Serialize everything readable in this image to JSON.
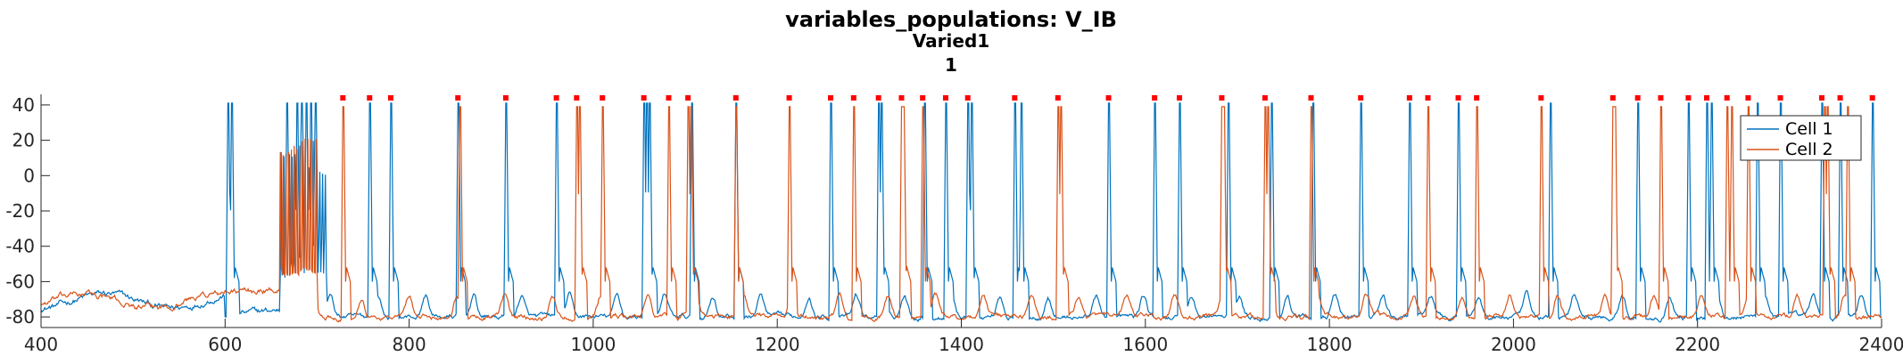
{
  "chart_data": {
    "type": "line",
    "title": "variables_populations: V_IB",
    "subtitle_lines": [
      "Varied1",
      "1"
    ],
    "xlabel": "",
    "ylabel": "",
    "xlim": [
      400,
      2400
    ],
    "ylim": [
      -86,
      46
    ],
    "xticks": [
      400,
      600,
      800,
      1000,
      1200,
      1400,
      1600,
      1800,
      2000,
      2200,
      2400
    ],
    "yticks": [
      -80,
      -60,
      -40,
      -20,
      0,
      20,
      40
    ],
    "grid": false,
    "legend_position": "top-right",
    "spike_marker": {
      "y": 44,
      "color": "#ff0000"
    },
    "series": [
      {
        "name": "Cell 1",
        "color": "#0072BD",
        "baseline_pre": -71,
        "burst_window": [
          660,
          710
        ],
        "spike_times": [
          603,
          607,
          667,
          678,
          683,
          688,
          693,
          698,
          757,
          780,
          853,
          905,
          960,
          1055,
          1058,
          1061,
          1107,
          1155,
          1258,
          1310,
          1313,
          1360,
          1383,
          1407,
          1411,
          1458,
          1465,
          1560,
          1610,
          1637,
          1690,
          1737,
          1782,
          1834,
          1887,
          1940,
          2040,
          2135,
          2190,
          2210,
          2215,
          2265,
          2290,
          2335,
          2355,
          2390
        ]
      },
      {
        "name": "Cell 2",
        "color": "#D95319",
        "baseline_pre": -71,
        "burst_window": [
          660,
          700
        ],
        "spike_times": [
          728,
          855,
          982,
          985,
          1010,
          1082,
          1103,
          1106,
          1155,
          1213,
          1283,
          1335,
          1337,
          1358,
          1505,
          1508,
          1683,
          1685,
          1730,
          1733,
          1780,
          1907,
          1960,
          2030,
          2108,
          2110,
          2160,
          2232,
          2237,
          2255,
          2338,
          2341,
          2363
        ]
      }
    ]
  }
}
